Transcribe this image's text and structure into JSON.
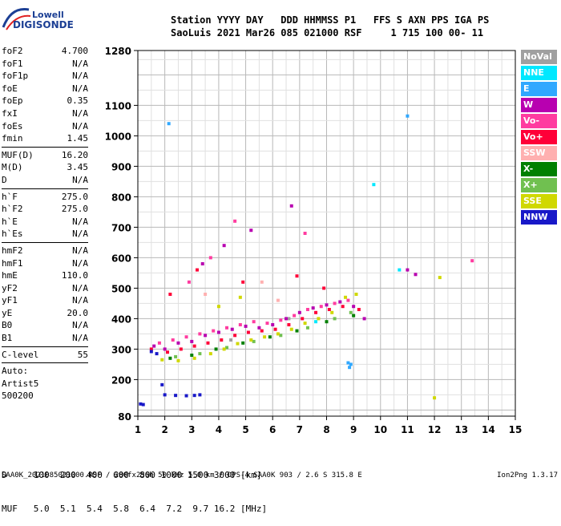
{
  "logo": {
    "line1": "Lowell",
    "line2": "DIGISONDE"
  },
  "header": {
    "line1": "Station YYYY DAY   DDD HHMMSS P1   FFS S AXN PPS IGA PS",
    "line2": "SaoLuis 2021 Mar26 085 021000 RSF     1 715 100 00- 11"
  },
  "params": [
    {
      "label": "foF2",
      "value": "4.700"
    },
    {
      "label": "foF1",
      "value": "N/A"
    },
    {
      "label": "foF1p",
      "value": "N/A"
    },
    {
      "label": "foE",
      "value": "N/A"
    },
    {
      "label": "foEp",
      "value": "0.35"
    },
    {
      "label": "fxI",
      "value": "N/A"
    },
    {
      "label": "foEs",
      "value": "N/A"
    },
    {
      "label": "fmin",
      "value": "1.45",
      "sep_after": true
    },
    {
      "label": "MUF(D)",
      "value": "16.20"
    },
    {
      "label": "M(D)",
      "value": "3.45"
    },
    {
      "label": "D",
      "value": "N/A",
      "sep_after": true
    },
    {
      "label": "h`F",
      "value": "275.0"
    },
    {
      "label": "h`F2",
      "value": "275.0"
    },
    {
      "label": "h`E",
      "value": "N/A"
    },
    {
      "label": "h`Es",
      "value": "N/A",
      "sep_after": true
    },
    {
      "label": "hmF2",
      "value": "N/A"
    },
    {
      "label": "hmF1",
      "value": "N/A"
    },
    {
      "label": "hmE",
      "value": "110.0"
    },
    {
      "label": "yF2",
      "value": "N/A"
    },
    {
      "label": "yF1",
      "value": "N/A"
    },
    {
      "label": "yE",
      "value": "20.0"
    },
    {
      "label": "B0",
      "value": "N/A"
    },
    {
      "label": "B1",
      "value": "N/A",
      "sep_after": true
    },
    {
      "label": "C-level",
      "value": "55",
      "sep_after": true
    }
  ],
  "auto_lines": [
    "Auto:",
    "Artist5",
    "500200"
  ],
  "legend": [
    {
      "label": "NoVal",
      "bg": "#a0a0a0",
      "fg": "#ffffff"
    },
    {
      "label": "NNE",
      "bg": "#00e8ff",
      "fg": "#ffffff"
    },
    {
      "label": "E",
      "bg": "#30a8ff",
      "fg": "#ffffff"
    },
    {
      "label": "W",
      "bg": "#b800b0",
      "fg": "#ffffff"
    },
    {
      "label": "Vo-",
      "bg": "#ff3ca0",
      "fg": "#ffffff"
    },
    {
      "label": "Vo+",
      "bg": "#ff0038",
      "fg": "#ffffff"
    },
    {
      "label": "SSW",
      "bg": "#ffb0b0",
      "fg": "#ffffff"
    },
    {
      "label": "X-",
      "bg": "#008000",
      "fg": "#ffffff"
    },
    {
      "label": "X+",
      "bg": "#70c050",
      "fg": "#ffffff"
    },
    {
      "label": "SSE",
      "bg": "#d0d800",
      "fg": "#ffffff"
    },
    {
      "label": "NNW",
      "bg": "#1818c8",
      "fg": "#ffffff"
    }
  ],
  "d_table": {
    "line1": "D     100  200  400  600  800 1000 1500 3000 [km]",
    "line2": "MUF   5.0  5.1  5.4  5.8  6.4  7.2  9.7 16.2 [MHz]"
  },
  "footer": {
    "left": "SAA0K_2021085021000.RSF / 280fx256h 50 kHz 5.0 km / DPS-4 SAA0K 903 / 2.6 S 315.8 E",
    "right": "Ion2Png 1.3.17"
  },
  "chart_data": {
    "type": "scatter",
    "xlim": [
      1,
      15
    ],
    "ylim": [
      80,
      1280
    ],
    "x_ticks": [
      "1",
      "2",
      "3",
      "4",
      "5",
      "6",
      "7",
      "8",
      "9",
      "10",
      "11",
      "12",
      "13",
      "14",
      "15"
    ],
    "y_ticks": [
      "80",
      "200",
      "300",
      "400",
      "500",
      "600",
      "700",
      "800",
      "900",
      "1000",
      "1100",
      "1280"
    ],
    "grid": true,
    "legend_position": "right",
    "series": [
      {
        "name": "NoVal",
        "color": "#a0a0a0",
        "points": [
          [
            4.45,
            330
          ],
          [
            6.6,
            400
          ]
        ]
      },
      {
        "name": "NNE",
        "color": "#00e8ff",
        "points": [
          [
            7.6,
            390
          ],
          [
            9.75,
            840
          ],
          [
            10.7,
            560
          ]
        ]
      },
      {
        "name": "E",
        "color": "#30a8ff",
        "points": [
          [
            8.8,
            255
          ],
          [
            8.85,
            240
          ],
          [
            8.9,
            250
          ],
          [
            11.0,
            1065
          ],
          [
            2.15,
            1040
          ]
        ]
      },
      {
        "name": "W",
        "color": "#b800b0",
        "points": [
          [
            1.6,
            310
          ],
          [
            2.0,
            300
          ],
          [
            2.5,
            320
          ],
          [
            3.0,
            325
          ],
          [
            3.5,
            345
          ],
          [
            4.0,
            355
          ],
          [
            4.5,
            365
          ],
          [
            5.0,
            375
          ],
          [
            5.5,
            370
          ],
          [
            6.0,
            380
          ],
          [
            6.5,
            400
          ],
          [
            7.0,
            420
          ],
          [
            7.5,
            435
          ],
          [
            8.0,
            445
          ],
          [
            8.5,
            455
          ],
          [
            9.0,
            440
          ],
          [
            9.4,
            400
          ],
          [
            11.0,
            560
          ],
          [
            11.3,
            545
          ],
          [
            3.4,
            580
          ],
          [
            4.2,
            640
          ],
          [
            5.2,
            690
          ],
          [
            6.7,
            770
          ]
        ]
      },
      {
        "name": "Vo-",
        "color": "#ff3ca0",
        "points": [
          [
            1.8,
            320
          ],
          [
            2.3,
            330
          ],
          [
            2.8,
            340
          ],
          [
            3.3,
            350
          ],
          [
            3.8,
            360
          ],
          [
            4.3,
            370
          ],
          [
            4.8,
            380
          ],
          [
            5.3,
            390
          ],
          [
            5.8,
            385
          ],
          [
            6.3,
            395
          ],
          [
            6.8,
            410
          ],
          [
            7.3,
            430
          ],
          [
            7.8,
            440
          ],
          [
            8.3,
            450
          ],
          [
            8.8,
            460
          ],
          [
            2.9,
            520
          ],
          [
            3.7,
            600
          ],
          [
            4.6,
            720
          ],
          [
            7.2,
            680
          ],
          [
            13.4,
            590
          ]
        ]
      },
      {
        "name": "Vo+",
        "color": "#ff0038",
        "points": [
          [
            1.5,
            300
          ],
          [
            2.1,
            290
          ],
          [
            2.6,
            300
          ],
          [
            3.1,
            310
          ],
          [
            3.6,
            320
          ],
          [
            4.1,
            330
          ],
          [
            4.6,
            345
          ],
          [
            5.1,
            355
          ],
          [
            5.6,
            360
          ],
          [
            6.1,
            365
          ],
          [
            6.6,
            380
          ],
          [
            7.1,
            400
          ],
          [
            7.6,
            420
          ],
          [
            8.1,
            430
          ],
          [
            8.6,
            440
          ],
          [
            9.2,
            430
          ],
          [
            2.2,
            480
          ],
          [
            3.2,
            560
          ],
          [
            4.9,
            520
          ],
          [
            6.9,
            540
          ],
          [
            7.9,
            500
          ]
        ]
      },
      {
        "name": "SSW",
        "color": "#ffb0b0",
        "points": [
          [
            3.5,
            480
          ],
          [
            5.6,
            520
          ],
          [
            6.2,
            460
          ]
        ]
      },
      {
        "name": "X-",
        "color": "#008000",
        "points": [
          [
            2.2,
            270
          ],
          [
            3.0,
            280
          ],
          [
            3.9,
            300
          ],
          [
            4.9,
            320
          ],
          [
            5.9,
            340
          ],
          [
            6.9,
            360
          ],
          [
            8.0,
            390
          ],
          [
            9.0,
            410
          ]
        ]
      },
      {
        "name": "X+",
        "color": "#70c050",
        "points": [
          [
            2.4,
            275
          ],
          [
            3.3,
            285
          ],
          [
            4.3,
            305
          ],
          [
            5.3,
            325
          ],
          [
            6.3,
            345
          ],
          [
            7.3,
            370
          ],
          [
            8.3,
            400
          ],
          [
            8.9,
            420
          ]
        ]
      },
      {
        "name": "SSE",
        "color": "#d0d800",
        "points": [
          [
            1.9,
            265
          ],
          [
            2.5,
            262
          ],
          [
            3.1,
            270
          ],
          [
            3.7,
            285
          ],
          [
            4.2,
            300
          ],
          [
            4.7,
            318
          ],
          [
            5.2,
            330
          ],
          [
            5.7,
            340
          ],
          [
            6.2,
            350
          ],
          [
            6.7,
            365
          ],
          [
            7.2,
            385
          ],
          [
            7.7,
            400
          ],
          [
            8.2,
            420
          ],
          [
            8.7,
            470
          ],
          [
            9.1,
            480
          ],
          [
            4.0,
            440
          ],
          [
            4.8,
            470
          ],
          [
            12.0,
            140
          ],
          [
            12.2,
            535
          ]
        ]
      },
      {
        "name": "NNW",
        "color": "#1818c8",
        "points": [
          [
            1.5,
            292
          ],
          [
            1.7,
            285
          ],
          [
            2.0,
            150
          ],
          [
            2.4,
            148
          ],
          [
            2.8,
            147
          ],
          [
            3.1,
            148
          ],
          [
            3.3,
            150
          ],
          [
            1.9,
            183
          ],
          [
            1.1,
            120
          ],
          [
            1.2,
            118
          ]
        ]
      }
    ]
  }
}
